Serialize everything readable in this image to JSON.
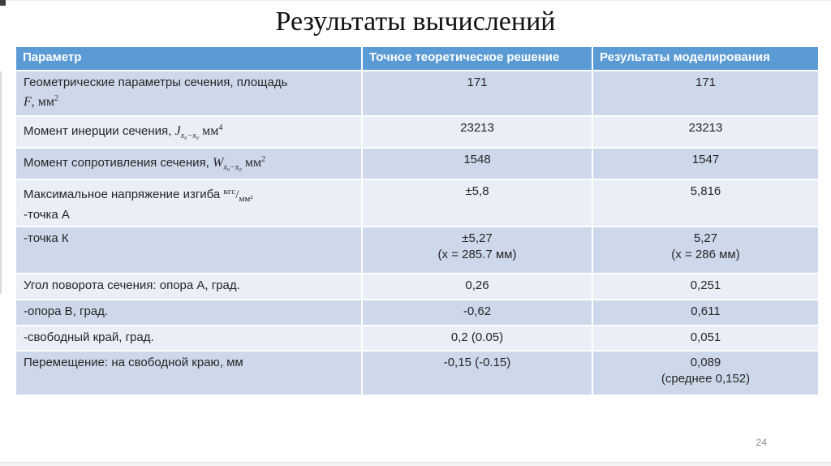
{
  "colors": {
    "header_bg": "#5b9bd5",
    "band_dark": "#cdd9ea",
    "band_light": "#e9eef7"
  },
  "slide": {
    "title": "Результаты вычислений",
    "page_number": "24"
  },
  "table": {
    "headers": [
      "Параметр",
      "Точное теоретическое решение",
      "Результаты моделирования"
    ],
    "rows": [
      {
        "param_line1": "Геометрические параметры сечения, площадь",
        "param_var": "F",
        "param_unit": ", мм",
        "param_sup": "2",
        "exact": "171",
        "model": "171"
      },
      {
        "param_text": "Момент инерции сечения, ",
        "param_var": "J",
        "param_sub": "x₀−x₀",
        "param_unit": " мм",
        "param_sup": "4",
        "exact": "23213",
        "model": "23213"
      },
      {
        "param_text": "Момент сопротивления сечения, ",
        "param_var": "W",
        "param_sub": "x₀−x₀",
        "param_unit": " мм",
        "param_sup": "2",
        "exact": "1548",
        "model": "1547"
      },
      {
        "param_text": "Максимальное напряжение изгиба ",
        "frac_num": "кгс",
        "frac_slash": "/",
        "frac_den": "мм²",
        "param_line2": "-точка А",
        "exact": "±5,8",
        "model": "5,816"
      },
      {
        "param": "-точка К",
        "exact_line1": "±5,27",
        "exact_line2": "(x = 285.7 мм)",
        "model_line1": "5,27",
        "model_line2": "(x = 286 мм)"
      },
      {
        "param": "Угол поворота сечения: опора А, град.",
        "exact": "0,26",
        "model": "0,251"
      },
      {
        "param": "-опора В, град.",
        "exact": "-0,62",
        "model": "0,611"
      },
      {
        "param": "-свободный край, град.",
        "exact": "0,2 (0.05)",
        "model": "0,051"
      },
      {
        "param": "Перемещение: на свободной краю, мм",
        "exact": "-0,15 (-0.15)",
        "model_line1": "0,089",
        "model_line2": "(среднее 0,152)"
      }
    ]
  }
}
